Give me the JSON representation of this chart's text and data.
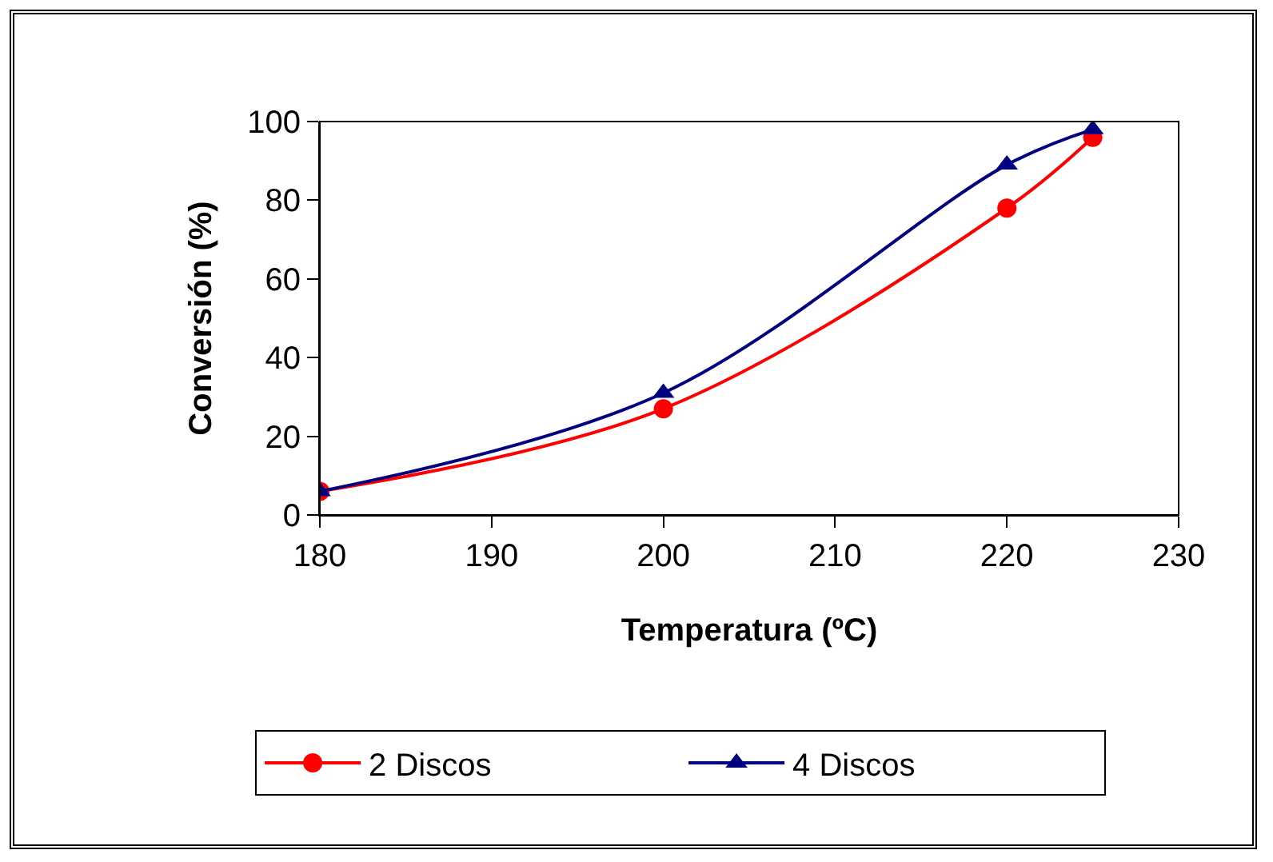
{
  "chart_data": {
    "type": "line",
    "xlabel": "Temperatura (ºC)",
    "ylabel": "Conversión (%)",
    "x": [
      180,
      200,
      220,
      225
    ],
    "series": [
      {
        "name": "2 Discos",
        "color": "#ff0000",
        "marker": "circle",
        "values": [
          6,
          27,
          78,
          96
        ]
      },
      {
        "name": "4 Discos",
        "color": "#000080",
        "marker": "triangle",
        "values": [
          6,
          31,
          89,
          98
        ]
      }
    ],
    "xlim": [
      180,
      230
    ],
    "xticks": [
      180,
      190,
      200,
      210,
      220,
      230
    ],
    "ylim": [
      0,
      100
    ],
    "yticks": [
      0,
      20,
      40,
      60,
      80,
      100
    ],
    "grid": false,
    "legend": "bottom"
  }
}
